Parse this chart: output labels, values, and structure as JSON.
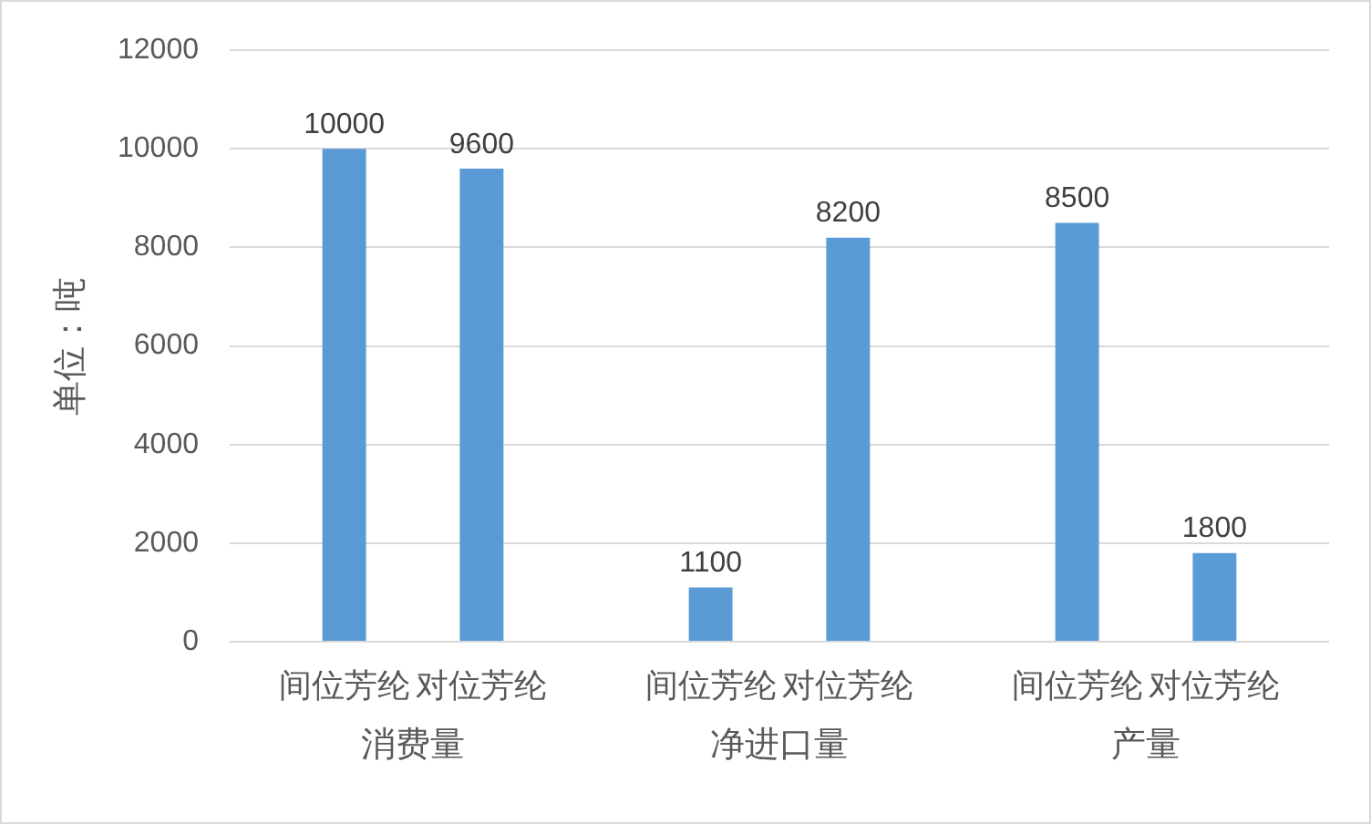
{
  "chart_data": {
    "type": "bar",
    "categories": [
      "消费量",
      "净进口量",
      "产量"
    ],
    "series": [
      {
        "name": "间位芳纶",
        "color": "#5b9bd5",
        "values": [
          10000,
          1100,
          8500
        ]
      },
      {
        "name": "对位芳纶",
        "color": "#5b9bd5",
        "values": [
          9600,
          8200,
          1800
        ]
      }
    ],
    "ylabel": "单位：吨",
    "ylim": [
      0,
      12000
    ],
    "yticks": [
      0,
      2000,
      4000,
      6000,
      8000,
      10000,
      12000
    ],
    "grid": "y",
    "data_labels": true
  }
}
